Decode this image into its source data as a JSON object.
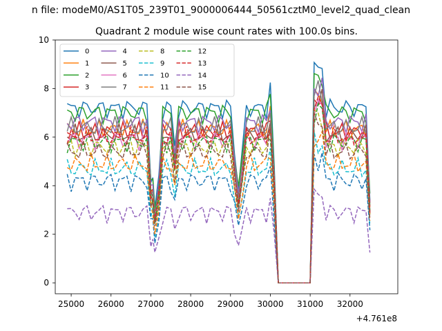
{
  "suptitle": "n file: modeM0/AS1T05_239T01_9000006444_50561cztM0_level2_quad_clean",
  "chart_data": {
    "type": "line",
    "title": "Quadrant 2 module wise count rates with 100.0s bins.",
    "xlabel": "",
    "ylabel": "",
    "offset_label": "+4.761e8",
    "xlim": [
      24600,
      33200
    ],
    "ylim": [
      -0.45,
      10.0
    ],
    "xticks": [
      25000,
      26000,
      27000,
      28000,
      29000,
      30000,
      31000,
      32000
    ],
    "yticks": [
      0,
      2,
      4,
      6,
      8,
      10
    ],
    "x": [
      24900,
      25000,
      25100,
      25200,
      25300,
      25400,
      25500,
      25600,
      25700,
      25800,
      25900,
      26000,
      26100,
      26200,
      26300,
      26400,
      26500,
      26600,
      26700,
      26800,
      26900,
      27000,
      27050,
      27100,
      27200,
      27300,
      27400,
      27500,
      27600,
      27700,
      27800,
      27900,
      28000,
      28100,
      28200,
      28300,
      28400,
      28500,
      28600,
      28700,
      28800,
      28900,
      29000,
      29100,
      29200,
      29300,
      29400,
      29500,
      29600,
      29700,
      29800,
      29900,
      30000,
      30100,
      30200,
      30300,
      30400,
      30500,
      30600,
      30700,
      30800,
      30900,
      31000,
      31100,
      31200,
      31300,
      31400,
      31500,
      31600,
      31700,
      31800,
      31900,
      32000,
      32100,
      32200,
      32300,
      32400,
      32500
    ],
    "series": [
      {
        "name": "0",
        "color": "#1f77b4",
        "dash": "solid",
        "base": 7.2
      },
      {
        "name": "1",
        "color": "#ff7f0e",
        "dash": "solid",
        "base": 6.3
      },
      {
        "name": "2",
        "color": "#2ca02c",
        "dash": "solid",
        "base": 7.0
      },
      {
        "name": "3",
        "color": "#d62728",
        "dash": "solid",
        "base": 6.2
      },
      {
        "name": "4",
        "color": "#9467bd",
        "dash": "solid",
        "base": 6.6
      },
      {
        "name": "5",
        "color": "#8c564b",
        "dash": "solid",
        "base": 6.1
      },
      {
        "name": "6",
        "color": "#e377c2",
        "dash": "solid",
        "base": 5.9
      },
      {
        "name": "7",
        "color": "#7f7f7f",
        "dash": "solid",
        "base": 6.4
      },
      {
        "name": "8",
        "color": "#bcbd22",
        "dash": "dashed",
        "base": 5.6
      },
      {
        "name": "9",
        "color": "#17becf",
        "dash": "dashed",
        "base": 4.7
      },
      {
        "name": "10",
        "color": "#1f77b4",
        "dash": "dashed",
        "base": 4.2
      },
      {
        "name": "11",
        "color": "#ff7f0e",
        "dash": "dashed",
        "base": 4.9
      },
      {
        "name": "12",
        "color": "#2ca02c",
        "dash": "dashed",
        "base": 5.8
      },
      {
        "name": "13",
        "color": "#d62728",
        "dash": "dashed",
        "base": 6.0
      },
      {
        "name": "14",
        "color": "#9467bd",
        "dash": "dashed",
        "base": 2.9
      },
      {
        "name": "15",
        "color": "#8c564b",
        "dash": "dashed",
        "base": 5.4
      }
    ],
    "legend": "top-left",
    "grid": false
  }
}
